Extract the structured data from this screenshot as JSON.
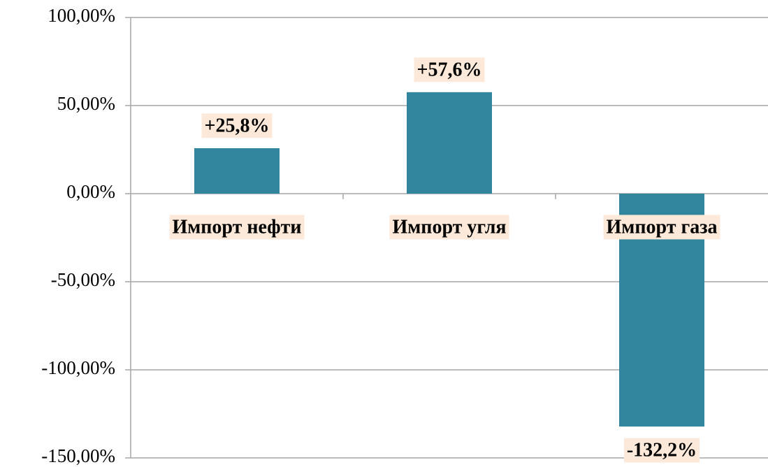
{
  "chart_data": {
    "type": "bar",
    "categories": [
      "Импорт нефти",
      "Импорт угля",
      "Импорт газа"
    ],
    "values": [
      25.8,
      57.6,
      -132.2
    ],
    "value_labels": [
      "+25,8%",
      "+57,6%",
      "-132,2%"
    ],
    "color": "#31859c",
    "label_background": "#fde9d9",
    "ylim": [
      -150,
      100
    ],
    "yticks": [
      {
        "value": -150,
        "label": "-150,00%"
      },
      {
        "value": -100,
        "label": "-100,00%"
      },
      {
        "value": -50,
        "label": "-50,00%"
      },
      {
        "value": 0,
        "label": "0,00%"
      },
      {
        "value": 50,
        "label": "50,00%"
      },
      {
        "value": 100,
        "label": "100,00%"
      }
    ],
    "grid": true
  }
}
